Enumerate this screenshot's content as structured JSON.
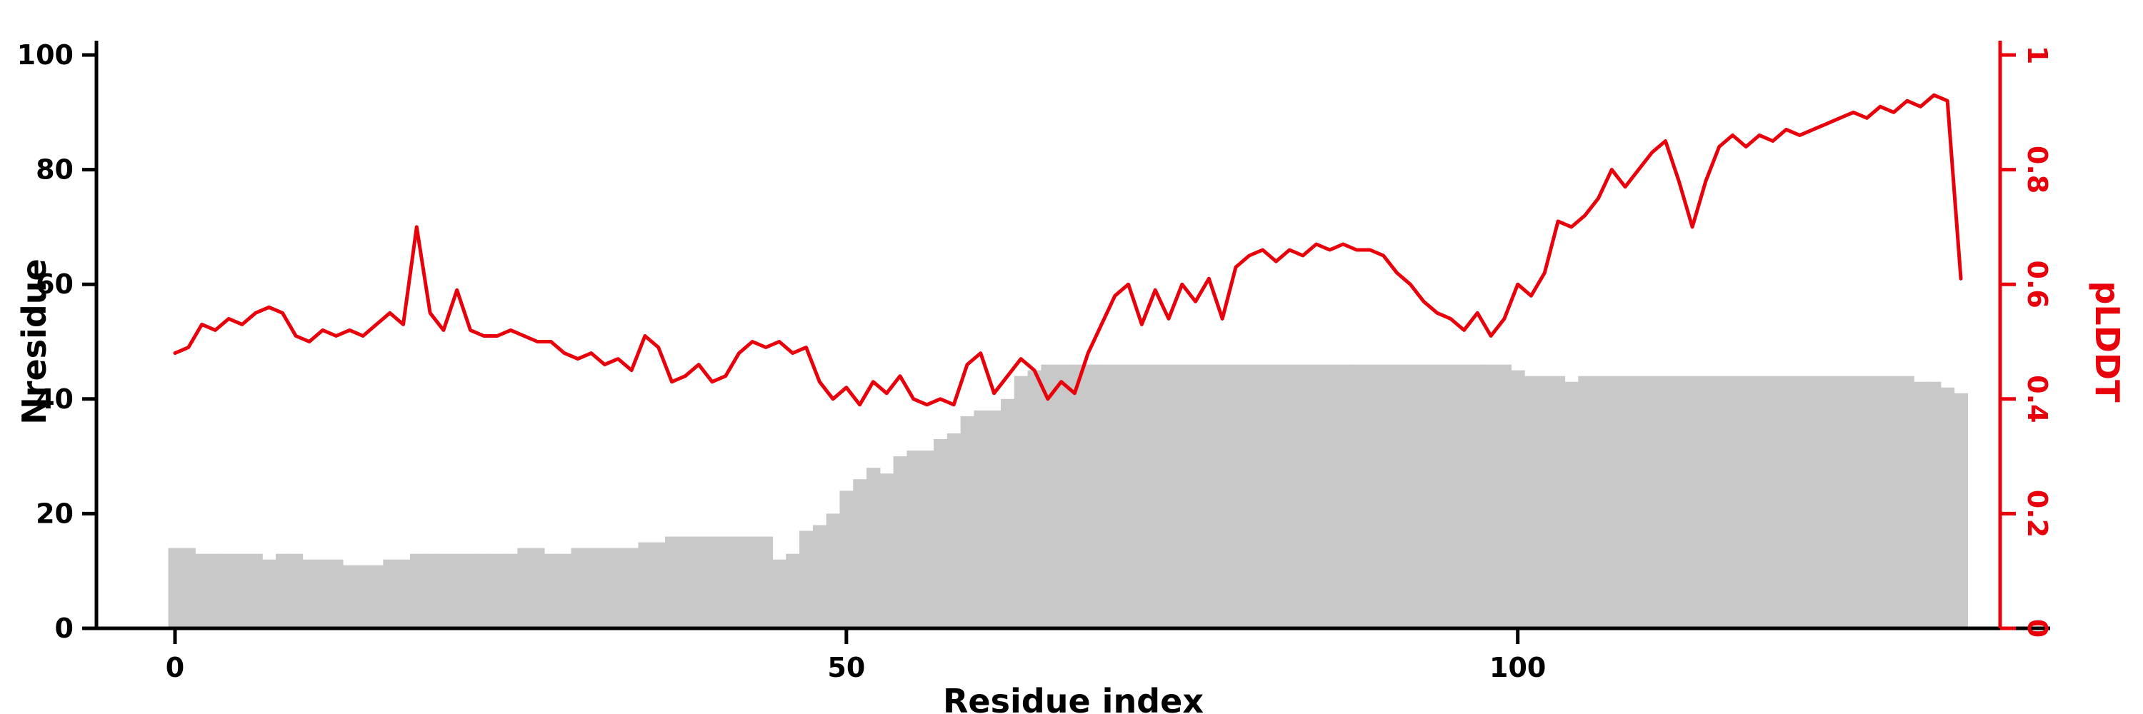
{
  "figure": {
    "background": "#ffffff",
    "bar_color": "#c8c8c8",
    "line_color": "#e8000b",
    "axis_color": "#000000"
  },
  "chart_data": {
    "type": "bar+line",
    "title": "",
    "xlabel": "Residue index",
    "x_ticks": [
      0,
      50,
      100
    ],
    "x_range": [
      0,
      133
    ],
    "left_axis": {
      "label": "Nresidue",
      "ticks": [
        0,
        20,
        40,
        60,
        80,
        100
      ],
      "range": [
        0,
        100
      ],
      "color": "#000000"
    },
    "right_axis": {
      "label": "pLDDT",
      "ticks": [
        0,
        0.2,
        0.4,
        0.6,
        0.8,
        1
      ],
      "range": [
        0,
        1
      ],
      "color": "#e8000b"
    },
    "grid": false,
    "legend": "none",
    "series": [
      {
        "name": "Nresidue",
        "type": "bar",
        "axis": "left",
        "color": "#c8c8c8",
        "values": [
          14,
          14,
          13,
          13,
          13,
          13,
          13,
          12,
          13,
          13,
          12,
          12,
          12,
          11,
          11,
          11,
          12,
          12,
          13,
          13,
          13,
          13,
          13,
          13,
          13,
          13,
          14,
          14,
          13,
          13,
          14,
          14,
          14,
          14,
          14,
          15,
          15,
          16,
          16,
          16,
          16,
          16,
          16,
          16,
          16,
          12,
          13,
          17,
          18,
          20,
          24,
          26,
          28,
          27,
          30,
          31,
          31,
          33,
          34,
          37,
          38,
          38,
          40,
          44,
          45,
          46,
          46,
          46,
          46,
          46,
          46,
          46,
          46,
          46,
          46,
          46,
          46,
          46,
          46,
          46,
          46,
          46,
          46,
          46,
          46,
          46,
          46,
          46,
          46,
          46,
          46,
          46,
          46,
          46,
          46,
          46,
          46,
          46,
          46,
          46,
          45,
          44,
          44,
          44,
          43,
          44,
          44,
          44,
          44,
          44,
          44,
          44,
          44,
          44,
          44,
          44,
          44,
          44,
          44,
          44,
          44,
          44,
          44,
          44,
          44,
          44,
          44,
          44,
          44,
          44,
          43,
          43,
          42,
          41
        ]
      },
      {
        "name": "pLDDT",
        "type": "line",
        "axis": "right",
        "color": "#e8000b",
        "values": [
          0.48,
          0.49,
          0.53,
          0.52,
          0.54,
          0.53,
          0.55,
          0.56,
          0.55,
          0.51,
          0.5,
          0.52,
          0.51,
          0.52,
          0.51,
          0.53,
          0.55,
          0.53,
          0.7,
          0.55,
          0.52,
          0.59,
          0.52,
          0.51,
          0.51,
          0.52,
          0.51,
          0.5,
          0.5,
          0.48,
          0.47,
          0.48,
          0.46,
          0.47,
          0.45,
          0.51,
          0.49,
          0.43,
          0.44,
          0.46,
          0.43,
          0.44,
          0.48,
          0.5,
          0.49,
          0.5,
          0.48,
          0.49,
          0.43,
          0.4,
          0.42,
          0.39,
          0.43,
          0.41,
          0.44,
          0.4,
          0.39,
          0.4,
          0.39,
          0.46,
          0.48,
          0.41,
          0.44,
          0.47,
          0.45,
          0.4,
          0.43,
          0.41,
          0.48,
          0.53,
          0.58,
          0.6,
          0.53,
          0.59,
          0.54,
          0.6,
          0.57,
          0.61,
          0.54,
          0.63,
          0.65,
          0.66,
          0.64,
          0.66,
          0.65,
          0.67,
          0.66,
          0.67,
          0.66,
          0.66,
          0.65,
          0.62,
          0.6,
          0.57,
          0.55,
          0.54,
          0.52,
          0.55,
          0.51,
          0.54,
          0.6,
          0.58,
          0.62,
          0.71,
          0.7,
          0.72,
          0.75,
          0.8,
          0.77,
          0.8,
          0.83,
          0.85,
          0.78,
          0.7,
          0.78,
          0.84,
          0.86,
          0.84,
          0.86,
          0.85,
          0.87,
          0.86,
          0.87,
          0.88,
          0.89,
          0.9,
          0.89,
          0.91,
          0.9,
          0.92,
          0.91,
          0.93,
          0.92,
          0.61
        ]
      }
    ]
  }
}
